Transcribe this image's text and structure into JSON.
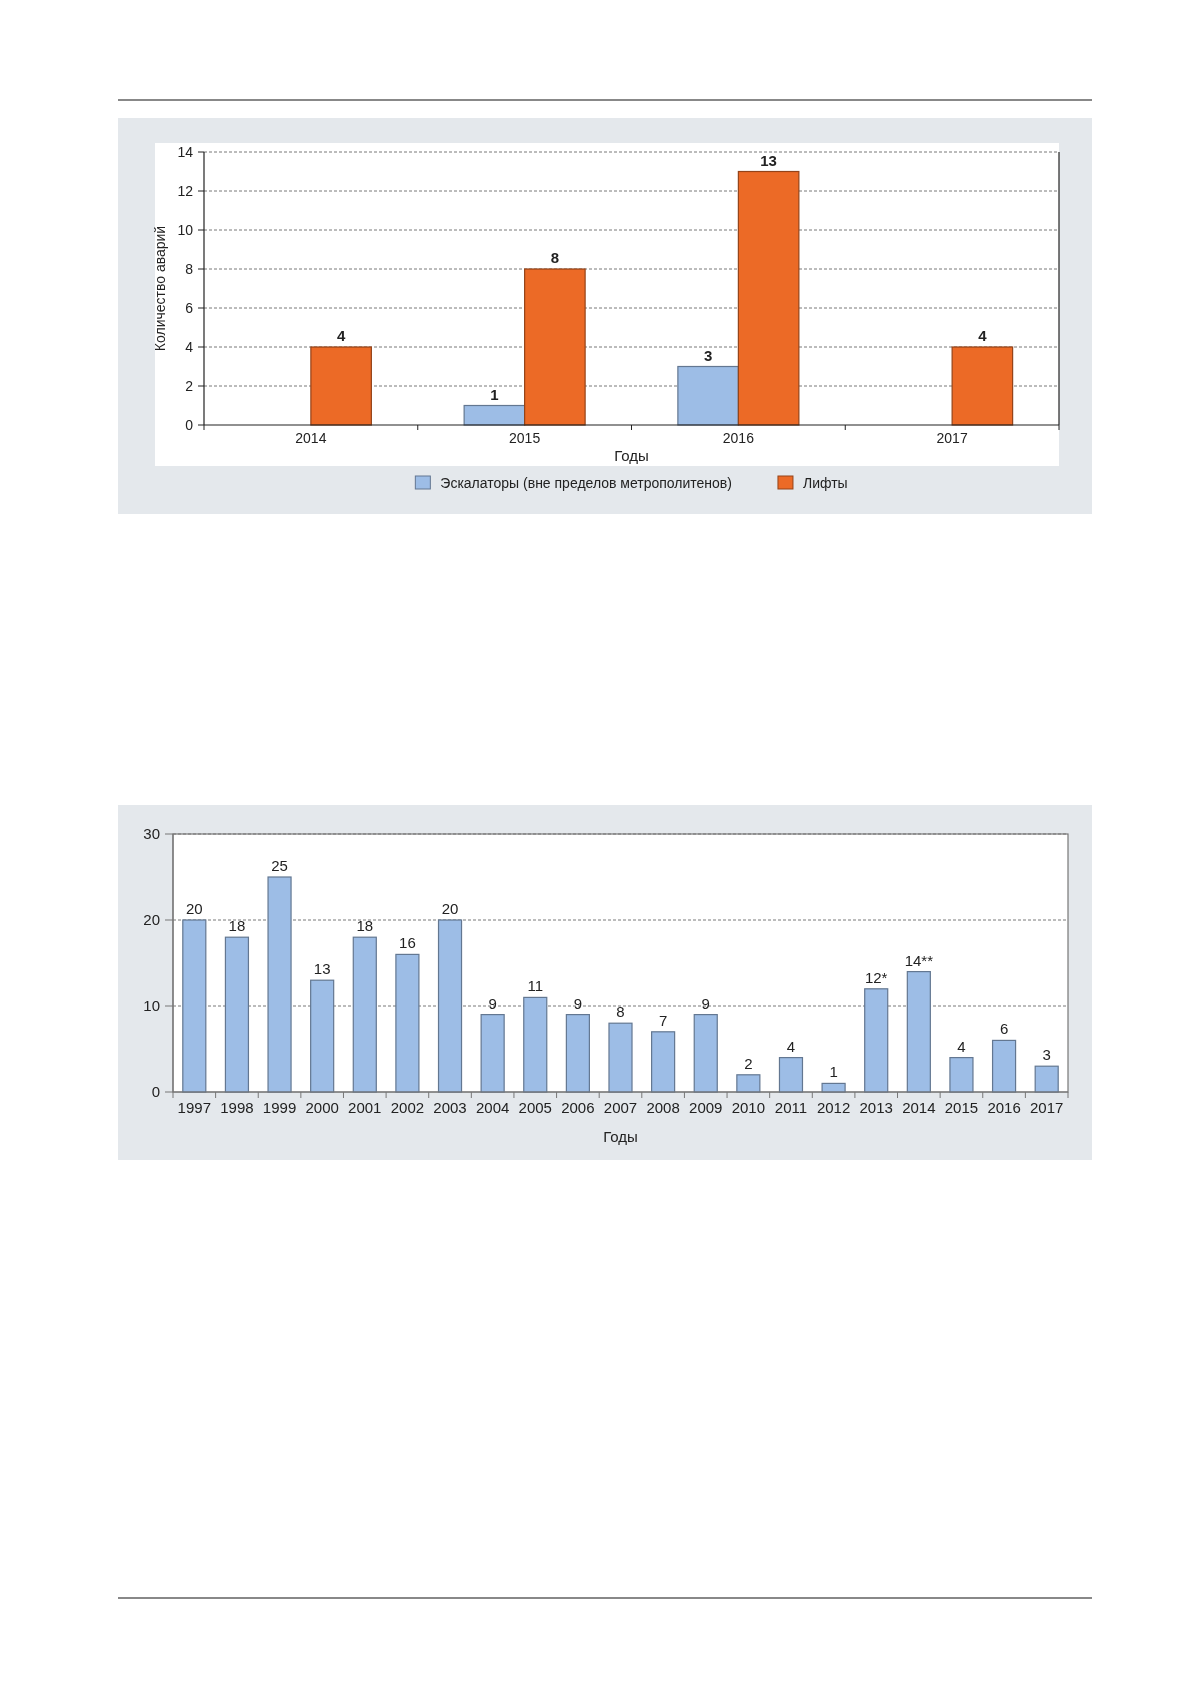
{
  "chart_data": [
    {
      "type": "bar",
      "categories": [
        "2014",
        "2015",
        "2016",
        "2017"
      ],
      "xlabel": "Годы",
      "ylabel": "Количество аварий",
      "series": [
        {
          "name": "Эскалаторы (вне пределов метрополитенов)",
          "color": "#9dbde6",
          "values": [
            null,
            1,
            3,
            null
          ]
        },
        {
          "name": "Лифты",
          "color": "#ec6a26",
          "values": [
            4,
            8,
            13,
            4
          ]
        }
      ],
      "ylim": [
        0,
        14
      ],
      "yticks": [
        0,
        2,
        4,
        6,
        8,
        10,
        12,
        14
      ],
      "grid": "y",
      "legend": "bottom",
      "data_labels": true
    },
    {
      "type": "bar",
      "categories": [
        "1997",
        "1998",
        "1999",
        "2000",
        "2001",
        "2002",
        "2003",
        "2004",
        "2005",
        "2006",
        "2007",
        "2008",
        "2009",
        "2010",
        "2011",
        "2012",
        "2013",
        "2014",
        "2015",
        "2016",
        "2017"
      ],
      "xlabel": "Годы",
      "values": [
        20,
        18,
        25,
        13,
        18,
        16,
        20,
        9,
        11,
        9,
        8,
        7,
        9,
        2,
        4,
        1,
        12,
        14,
        4,
        6,
        3
      ],
      "value_labels": [
        "20",
        "18",
        "25",
        "13",
        "18",
        "16",
        "20",
        "9",
        "11",
        "9",
        "8",
        "7",
        "9",
        "2",
        "4",
        "1",
        "12*",
        "14**",
        "4",
        "6",
        "3"
      ],
      "color": "#9dbde6",
      "ylim": [
        0,
        30
      ],
      "yticks": [
        0,
        10,
        20,
        30
      ],
      "grid": "y"
    }
  ]
}
